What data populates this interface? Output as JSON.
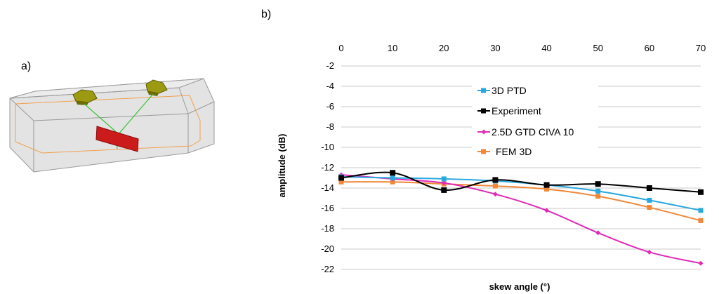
{
  "panels": {
    "a": "a)",
    "b": "b)"
  },
  "colors": {
    "3D PTD": "#29a8e0",
    "Experiment": "#000000",
    "2.5D GTD CIVA 10": "#e02bb8",
    "FEM 3D": "#f0883a"
  },
  "chart_data": {
    "type": "line",
    "xlabel": "skew angle (°)",
    "ylabel": "amplitude (dB)",
    "x": [
      0,
      10,
      20,
      30,
      40,
      50,
      60,
      70
    ],
    "xlim": [
      0,
      70
    ],
    "x_axis_position": "top",
    "ylim": [
      -22,
      -2
    ],
    "y_ticks": [
      -2,
      -4,
      -6,
      -8,
      -10,
      -12,
      -14,
      -16,
      -18,
      -20,
      -22
    ],
    "grid": "horizontal",
    "legend_position": "top-center",
    "series": [
      {
        "name": "3D PTD",
        "marker": "square",
        "values": [
          -12.9,
          -13.0,
          -13.1,
          -13.3,
          -13.7,
          -14.3,
          -15.2,
          -16.2
        ]
      },
      {
        "name": "Experiment",
        "marker": "square",
        "values": [
          -13.0,
          -12.5,
          -14.2,
          -13.2,
          -13.7,
          -13.6,
          -14.0,
          -14.4
        ]
      },
      {
        "name": "2.5D GTD CIVA 10",
        "marker": "diamond",
        "values": [
          -12.7,
          -13.1,
          -13.5,
          -14.6,
          -16.2,
          -18.4,
          -20.3,
          -21.4
        ]
      },
      {
        "name": "FEM 3D",
        "marker": "square",
        "values": [
          -13.4,
          -13.4,
          -13.6,
          -13.8,
          -14.1,
          -14.8,
          -15.9,
          -17.2
        ]
      }
    ]
  }
}
